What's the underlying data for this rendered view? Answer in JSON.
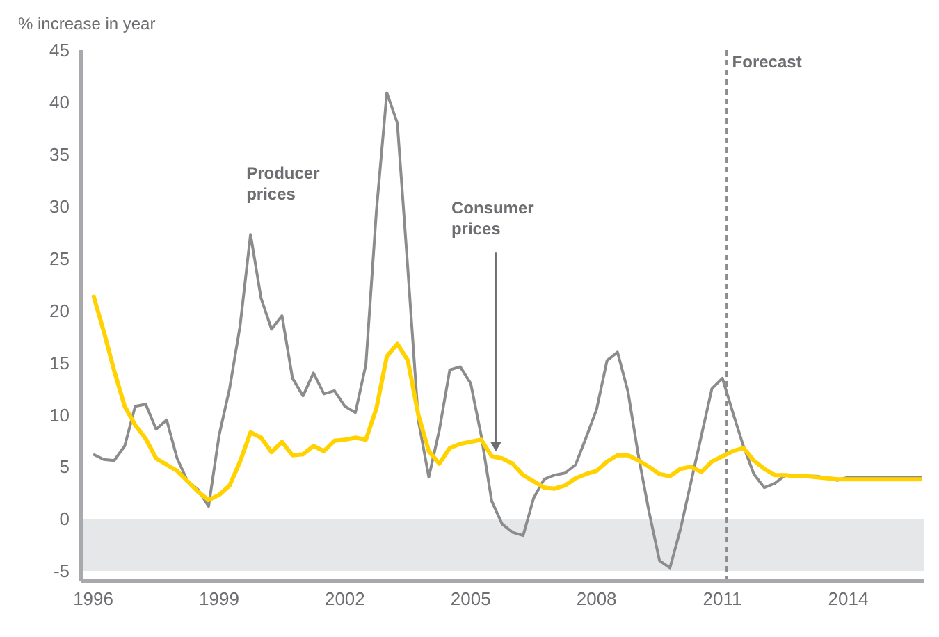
{
  "chart_data": {
    "type": "line",
    "ylabel": "% increase in year",
    "xlim": [
      1995.7,
      2015.8
    ],
    "xticks": [
      1996,
      1999,
      2002,
      2005,
      2008,
      2011,
      2014
    ],
    "ylim": [
      -6,
      45
    ],
    "yticks": [
      -5,
      0,
      5,
      10,
      15,
      20,
      25,
      30,
      35,
      40,
      45
    ],
    "grid": false,
    "bands": [
      {
        "axis": "y",
        "from": -5,
        "to": 0,
        "color": "#e6e7e8"
      }
    ],
    "ref_lines": [
      {
        "axis": "x",
        "value": 2011.1,
        "label": "Forecast",
        "color": "#8c8c8c",
        "line_style": "dashed"
      }
    ],
    "annotations": [
      {
        "text": "Producer prices",
        "x": 1999.75,
        "y": 27.3
      },
      {
        "text": "Consumer prices",
        "x": 2005.6,
        "y": 6.2
      }
    ],
    "series": [
      {
        "color": "#8c8c8c",
        "x": [
          1996.0,
          1996.25,
          1996.5,
          1996.75,
          1997.0,
          1997.25,
          1997.5,
          1997.75,
          1998.0,
          1998.25,
          1998.5,
          1998.75,
          1999.0,
          1999.25,
          1999.5,
          1999.75,
          2000.0,
          2000.25,
          2000.5,
          2000.75,
          2001.0,
          2001.25,
          2001.5,
          2001.75,
          2002.0,
          2002.25,
          2002.5,
          2002.75,
          2003.0,
          2003.25,
          2003.5,
          2003.75,
          2004.0,
          2004.25,
          2004.5,
          2004.75,
          2005.0,
          2005.25,
          2005.5,
          2005.75,
          2006.0,
          2006.25,
          2006.5,
          2006.75,
          2007.0,
          2007.25,
          2007.5,
          2007.75,
          2008.0,
          2008.25,
          2008.5,
          2008.75,
          2009.0,
          2009.25,
          2009.5,
          2009.75,
          2010.0,
          2010.25,
          2010.5,
          2010.75,
          2011.0,
          2011.25,
          2011.5,
          2011.75,
          2012.0,
          2012.25,
          2012.5,
          2012.75,
          2013.0,
          2013.25,
          2013.5,
          2013.75,
          2014.0,
          2014.5,
          2015.75
        ],
        "values": [
          6.2,
          5.7,
          5.6,
          7.0,
          10.8,
          11.0,
          8.6,
          9.5,
          5.8,
          3.6,
          2.8,
          1.2,
          8.0,
          12.5,
          18.5,
          27.3,
          21.2,
          18.2,
          19.5,
          13.5,
          11.8,
          14.0,
          12.0,
          12.3,
          10.8,
          10.2,
          14.8,
          29.5,
          40.9,
          38.0,
          24.0,
          9.5,
          4.0,
          8.5,
          14.3,
          14.6,
          13.0,
          8.0,
          1.7,
          -0.5,
          -1.3,
          -1.6,
          2.0,
          3.8,
          4.2,
          4.4,
          5.2,
          7.8,
          10.5,
          15.2,
          16.0,
          12.2,
          6.0,
          0.7,
          -4.0,
          -4.7,
          -1.0,
          3.5,
          8.0,
          12.5,
          13.5,
          10.2,
          7.0,
          4.3,
          3.0,
          3.4,
          4.2,
          4.2,
          4.1,
          4.1,
          3.9,
          3.7,
          4.0,
          4.0,
          4.0
        ]
      },
      {
        "color": "#ffd200",
        "x": [
          1996.0,
          1996.25,
          1996.5,
          1996.75,
          1997.0,
          1997.25,
          1997.5,
          1997.75,
          1998.0,
          1998.25,
          1998.5,
          1998.75,
          1999.0,
          1999.25,
          1999.5,
          1999.75,
          2000.0,
          2000.25,
          2000.5,
          2000.75,
          2001.0,
          2001.25,
          2001.5,
          2001.75,
          2002.0,
          2002.25,
          2002.5,
          2002.75,
          2003.0,
          2003.25,
          2003.5,
          2003.75,
          2004.0,
          2004.25,
          2004.5,
          2004.75,
          2005.0,
          2005.25,
          2005.5,
          2005.75,
          2006.0,
          2006.25,
          2006.5,
          2006.75,
          2007.0,
          2007.25,
          2007.5,
          2007.75,
          2008.0,
          2008.25,
          2008.5,
          2008.75,
          2009.0,
          2009.25,
          2009.5,
          2009.75,
          2010.0,
          2010.25,
          2010.5,
          2010.75,
          2011.0,
          2011.25,
          2011.5,
          2011.75,
          2012.0,
          2012.25,
          2012.5,
          2012.75,
          2013.0,
          2013.25,
          2013.5,
          2013.75,
          2014.0,
          2015.75
        ],
        "values": [
          21.5,
          18.0,
          14.2,
          10.8,
          9.0,
          7.7,
          5.8,
          5.2,
          4.6,
          3.6,
          2.6,
          1.8,
          2.3,
          3.2,
          5.5,
          8.3,
          7.8,
          6.4,
          7.4,
          6.1,
          6.2,
          7.0,
          6.5,
          7.5,
          7.6,
          7.8,
          7.6,
          10.6,
          15.6,
          16.8,
          15.2,
          10.0,
          6.5,
          5.3,
          6.8,
          7.2,
          7.4,
          7.6,
          6.0,
          5.8,
          5.3,
          4.2,
          3.6,
          3.0,
          2.9,
          3.2,
          3.9,
          4.3,
          4.6,
          5.5,
          6.1,
          6.1,
          5.6,
          5.0,
          4.3,
          4.1,
          4.8,
          5.0,
          4.5,
          5.5,
          6.0,
          6.5,
          6.8,
          5.6,
          4.8,
          4.2,
          4.2,
          4.1,
          4.1,
          4.0,
          3.9,
          3.8,
          3.8,
          3.8
        ]
      }
    ]
  }
}
